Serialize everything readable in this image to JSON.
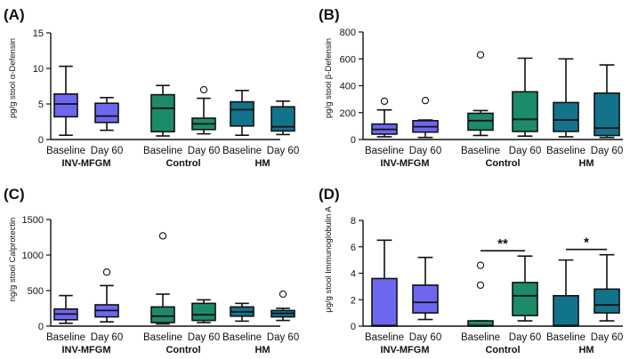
{
  "colors": {
    "INV-MFGM": "#6d67f0",
    "Control": "#1c8b6a",
    "HM": "#13738a",
    "stroke": "#111111"
  },
  "chart_data": [
    {
      "type": "box",
      "panel_label": "(A)",
      "ylabel": "pg/g stool α-Defensin",
      "ylim": [
        0,
        15
      ],
      "yticks": [
        "0",
        "5",
        "10",
        "15"
      ],
      "categories": [
        "Baseline",
        "Day 60",
        "Baseline",
        "Day 60",
        "Baseline",
        "Day 60"
      ],
      "groups": [
        "INV-MFGM",
        "Control",
        "HM"
      ],
      "boxes": [
        {
          "group": "INV-MFGM",
          "timepoint": "Baseline",
          "min": 0.6,
          "q1": 3.2,
          "median": 5.0,
          "q3": 6.4,
          "max": 10.3,
          "outliers": []
        },
        {
          "group": "INV-MFGM",
          "timepoint": "Day 60",
          "min": 1.3,
          "q1": 2.4,
          "median": 3.3,
          "q3": 5.1,
          "max": 5.9,
          "outliers": []
        },
        {
          "group": "Control",
          "timepoint": "Baseline",
          "min": 0.5,
          "q1": 1.1,
          "median": 4.4,
          "q3": 6.3,
          "max": 7.6,
          "outliers": []
        },
        {
          "group": "Control",
          "timepoint": "Day 60",
          "min": 0.8,
          "q1": 1.4,
          "median": 2.2,
          "q3": 3.0,
          "max": 5.8,
          "outliers": [
            7.0
          ]
        },
        {
          "group": "HM",
          "timepoint": "Baseline",
          "min": 0.6,
          "q1": 1.9,
          "median": 4.2,
          "q3": 5.3,
          "max": 6.9,
          "outliers": []
        },
        {
          "group": "HM",
          "timepoint": "Day 60",
          "min": 0.7,
          "q1": 1.2,
          "median": 1.8,
          "q3": 4.6,
          "max": 5.4,
          "outliers": []
        }
      ],
      "significance": []
    },
    {
      "type": "box",
      "panel_label": "(B)",
      "ylabel": "pg/g stool β-Defensin",
      "ylim": [
        0,
        800
      ],
      "yticks": [
        "0",
        "200",
        "400",
        "600",
        "800"
      ],
      "categories": [
        "Baseline",
        "Day 60",
        "Baseline",
        "Day 60",
        "Baseline",
        "Day 60"
      ],
      "groups": [
        "INV-MFGM",
        "Control",
        "HM"
      ],
      "boxes": [
        {
          "group": "INV-MFGM",
          "timepoint": "Baseline",
          "min": 20,
          "q1": 40,
          "median": 75,
          "q3": 115,
          "max": 220,
          "outliers": [
            285
          ]
        },
        {
          "group": "INV-MFGM",
          "timepoint": "Day 60",
          "min": 15,
          "q1": 55,
          "median": 95,
          "q3": 140,
          "max": 145,
          "outliers": [
            290
          ]
        },
        {
          "group": "Control",
          "timepoint": "Baseline",
          "min": 30,
          "q1": 70,
          "median": 140,
          "q3": 195,
          "max": 215,
          "outliers": [
            630
          ]
        },
        {
          "group": "Control",
          "timepoint": "Day 60",
          "min": 25,
          "q1": 60,
          "median": 150,
          "q3": 355,
          "max": 605,
          "outliers": []
        },
        {
          "group": "HM",
          "timepoint": "Baseline",
          "min": 20,
          "q1": 60,
          "median": 145,
          "q3": 275,
          "max": 600,
          "outliers": []
        },
        {
          "group": "HM",
          "timepoint": "Day 60",
          "min": 15,
          "q1": 30,
          "median": 85,
          "q3": 345,
          "max": 555,
          "outliers": []
        }
      ],
      "significance": []
    },
    {
      "type": "box",
      "panel_label": "(C)",
      "ylabel": "ng/g stool Calprotectin",
      "ylim": [
        0,
        1500
      ],
      "yticks": [
        "0",
        "500",
        "1000",
        "1500"
      ],
      "categories": [
        "Baseline",
        "Day 60",
        "Baseline",
        "Day 60",
        "Baseline",
        "Day 60"
      ],
      "groups": [
        "INV-MFGM",
        "Control",
        "HM"
      ],
      "boxes": [
        {
          "group": "INV-MFGM",
          "timepoint": "Baseline",
          "min": 40,
          "q1": 90,
          "median": 170,
          "q3": 240,
          "max": 430,
          "outliers": []
        },
        {
          "group": "INV-MFGM",
          "timepoint": "Day 60",
          "min": 60,
          "q1": 130,
          "median": 220,
          "q3": 300,
          "max": 570,
          "outliers": [
            760
          ]
        },
        {
          "group": "Control",
          "timepoint": "Baseline",
          "min": 30,
          "q1": 50,
          "median": 140,
          "q3": 270,
          "max": 450,
          "outliers": [
            1270
          ]
        },
        {
          "group": "Control",
          "timepoint": "Day 60",
          "min": 50,
          "q1": 80,
          "median": 160,
          "q3": 320,
          "max": 370,
          "outliers": []
        },
        {
          "group": "HM",
          "timepoint": "Baseline",
          "min": 70,
          "q1": 140,
          "median": 200,
          "q3": 270,
          "max": 320,
          "outliers": []
        },
        {
          "group": "HM",
          "timepoint": "Day 60",
          "min": 80,
          "q1": 130,
          "median": 180,
          "q3": 220,
          "max": 250,
          "outliers": [
            450
          ]
        }
      ],
      "significance": []
    },
    {
      "type": "box",
      "panel_label": "(D)",
      "ylabel": "μg/g stool Immunoglobulin A",
      "ylim": [
        0,
        8
      ],
      "yticks": [
        "0",
        "2",
        "4",
        "6",
        "8"
      ],
      "categories": [
        "Baseline",
        "Day 60",
        "Baseline",
        "Day 60",
        "Baseline",
        "Day 60"
      ],
      "groups": [
        "INV-MFGM",
        "Control",
        "HM"
      ],
      "boxes": [
        {
          "group": "INV-MFGM",
          "timepoint": "Baseline",
          "min": 0.0,
          "q1": 0.0,
          "median": 0.05,
          "q3": 3.6,
          "max": 6.5,
          "outliers": []
        },
        {
          "group": "INV-MFGM",
          "timepoint": "Day 60",
          "min": 0.5,
          "q1": 1.0,
          "median": 1.8,
          "q3": 3.1,
          "max": 5.2,
          "outliers": []
        },
        {
          "group": "Control",
          "timepoint": "Baseline",
          "min": 0.0,
          "q1": 0.0,
          "median": 0.05,
          "q3": 0.4,
          "max": 0.4,
          "outliers": [
            3.1,
            4.6
          ]
        },
        {
          "group": "Control",
          "timepoint": "Day 60",
          "min": 0.4,
          "q1": 0.8,
          "median": 2.3,
          "q3": 3.3,
          "max": 5.3,
          "outliers": []
        },
        {
          "group": "HM",
          "timepoint": "Baseline",
          "min": 0.0,
          "q1": 0.0,
          "median": 0.05,
          "q3": 2.3,
          "max": 5.0,
          "outliers": []
        },
        {
          "group": "HM",
          "timepoint": "Day 60",
          "min": 0.4,
          "q1": 1.0,
          "median": 1.6,
          "q3": 2.8,
          "max": 5.4,
          "outliers": []
        }
      ],
      "significance": [
        {
          "group": "Control",
          "label": "**"
        },
        {
          "group": "HM",
          "label": "*"
        }
      ]
    }
  ]
}
